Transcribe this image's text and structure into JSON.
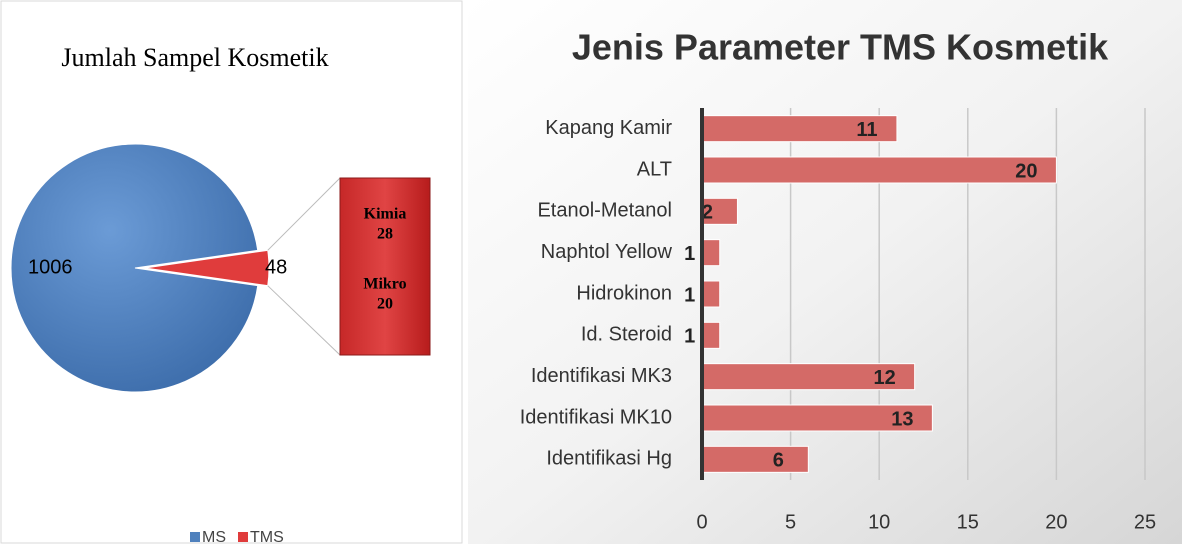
{
  "chart_data": [
    {
      "type": "pie",
      "title": "Jumlah Sampel Kosmetik",
      "categories": [
        "MS",
        "TMS"
      ],
      "values": [
        1006,
        48
      ],
      "colors": [
        "#4f81bd",
        "#e03c3c"
      ],
      "breakdown": [
        {
          "name": "Kimia",
          "value": 28
        },
        {
          "name": "Mikro",
          "value": 20
        }
      ],
      "legend": "bottom"
    },
    {
      "type": "bar",
      "orientation": "horizontal",
      "title": "Jenis Parameter TMS Kosmetik",
      "categories": [
        "Kapang Kamir",
        "ALT",
        "Etanol-Metanol",
        "Naphtol Yellow",
        "Hidrokinon",
        "Id. Steroid",
        "Identifikasi MK3",
        "Identifikasi MK10",
        "Identifikasi Hg"
      ],
      "values": [
        11,
        20,
        2,
        1,
        1,
        1,
        12,
        13,
        6
      ],
      "color": "#d46a67",
      "xlim": [
        0,
        25
      ],
      "xticks": [
        0,
        5,
        10,
        15,
        20,
        25
      ],
      "grid": true
    }
  ]
}
